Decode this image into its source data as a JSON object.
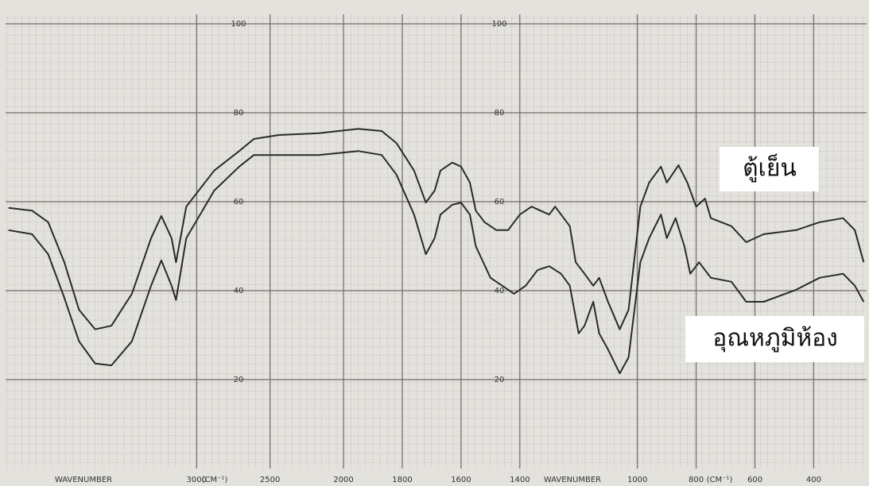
{
  "chart_data": {
    "type": "line",
    "xlabel": "WAVENUMBER",
    "xunit": "(CM⁻¹)",
    "xlim": [
      4300,
      220
    ],
    "xbreak": 2000,
    "xticks": [
      3000,
      2500,
      2000,
      1800,
      1600,
      1400,
      1000,
      800,
      600,
      400
    ],
    "ylim": [
      0,
      100
    ],
    "yticks": [
      20,
      40,
      60,
      80,
      100
    ],
    "grid": true,
    "series": [
      {
        "name": "ตู้เย็น",
        "color": "#2a2a2a",
        "x": [
          4280,
          4120,
          4010,
          3900,
          3800,
          3690,
          3580,
          3440,
          3310,
          3240,
          3170,
          3140,
          3070,
          2880,
          2710,
          2610,
          2440,
          2170,
          1950,
          1870,
          1820,
          1760,
          1720,
          1690,
          1670,
          1630,
          1600,
          1570,
          1550,
          1520,
          1480,
          1440,
          1400,
          1360,
          1300,
          1280,
          1230,
          1210,
          1180,
          1150,
          1130,
          1100,
          1060,
          1030,
          990,
          960,
          920,
          900,
          860,
          830,
          800,
          770,
          750,
          680,
          630,
          570,
          460,
          380,
          300,
          260,
          230
        ],
        "values": [
          58.6,
          58.0,
          55.4,
          46.4,
          35.7,
          31.3,
          32.1,
          39.3,
          51.8,
          56.8,
          51.8,
          46.4,
          58.9,
          67.0,
          71.4,
          74.1,
          75.0,
          75.4,
          76.4,
          75.9,
          73.2,
          67.0,
          59.8,
          62.5,
          67.0,
          68.8,
          67.9,
          64.3,
          58.0,
          55.4,
          53.6,
          53.6,
          57.1,
          58.9,
          57.1,
          58.9,
          54.5,
          46.4,
          43.8,
          41.1,
          42.9,
          37.5,
          31.3,
          35.7,
          58.9,
          64.3,
          67.9,
          64.3,
          68.2,
          64.3,
          58.9,
          60.7,
          56.3,
          54.5,
          50.9,
          52.7,
          53.6,
          55.4,
          56.3,
          53.6,
          46.4
        ]
      },
      {
        "name": "อุณหภูมิห้อง",
        "color": "#2a2a2a",
        "x": [
          4280,
          4120,
          4010,
          3900,
          3800,
          3690,
          3580,
          3440,
          3310,
          3240,
          3170,
          3140,
          3070,
          2880,
          2710,
          2610,
          2440,
          2170,
          1950,
          1870,
          1820,
          1760,
          1720,
          1690,
          1670,
          1630,
          1600,
          1570,
          1550,
          1500,
          1460,
          1420,
          1380,
          1340,
          1300,
          1260,
          1230,
          1220,
          1200,
          1180,
          1150,
          1130,
          1100,
          1060,
          1030,
          990,
          960,
          920,
          900,
          870,
          840,
          820,
          790,
          750,
          680,
          630,
          570,
          460,
          380,
          300,
          260,
          230
        ],
        "values": [
          53.6,
          52.7,
          48.2,
          38.4,
          28.6,
          23.6,
          23.2,
          28.6,
          41.1,
          46.8,
          41.1,
          37.9,
          51.8,
          62.5,
          67.9,
          70.5,
          70.5,
          70.5,
          71.4,
          70.5,
          66.1,
          57.1,
          48.2,
          51.8,
          57.1,
          59.3,
          59.8,
          57.1,
          50.0,
          42.9,
          41.1,
          39.3,
          41.1,
          44.6,
          45.5,
          43.8,
          41.1,
          37.5,
          30.4,
          32.1,
          37.5,
          30.4,
          26.8,
          21.4,
          25.0,
          46.4,
          51.8,
          57.1,
          51.8,
          56.3,
          50.0,
          43.8,
          46.4,
          42.9,
          42.0,
          37.5,
          37.5,
          40.2,
          42.9,
          43.8,
          41.1,
          37.5
        ]
      }
    ]
  }
}
